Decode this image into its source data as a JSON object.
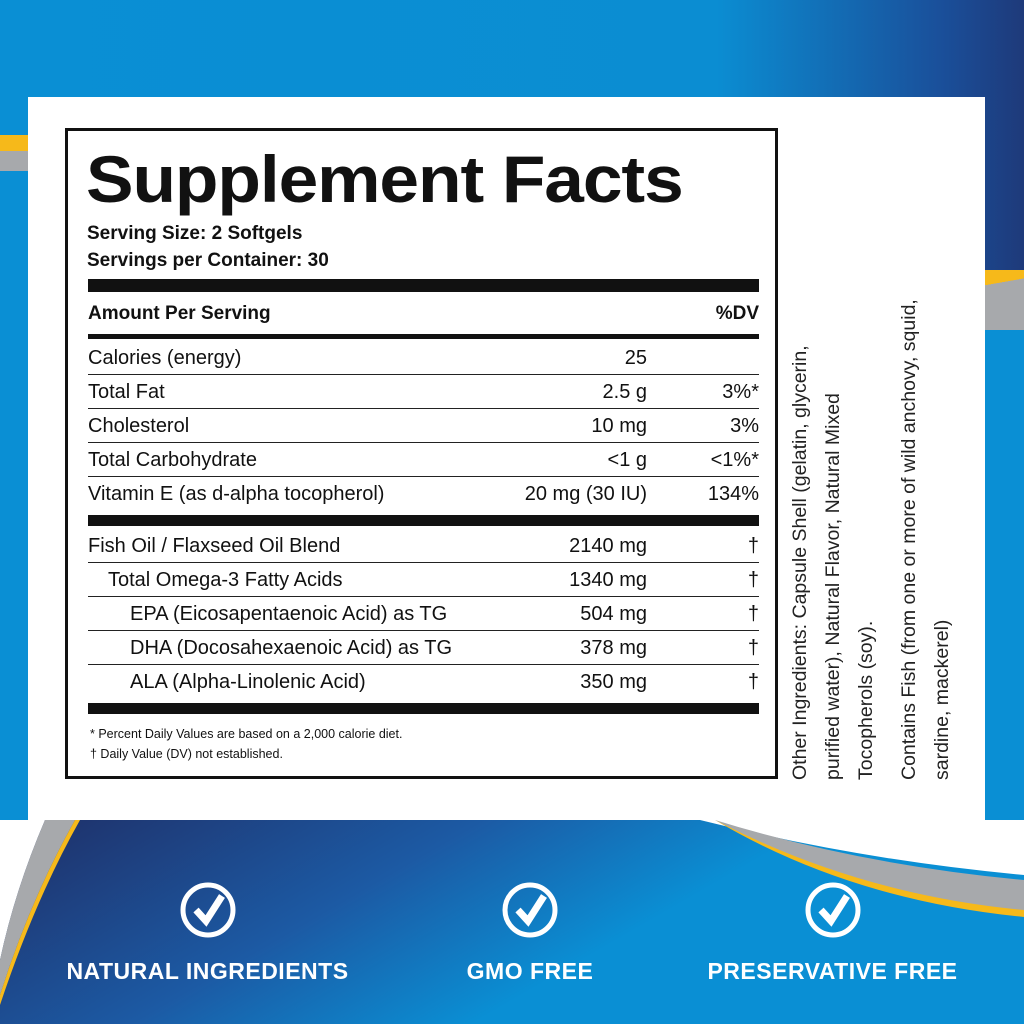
{
  "colors": {
    "brand_blue": "#0a8fd4",
    "navy": "#1f2e66",
    "accent_yellow": "#f6b91a",
    "gray": "#a7a9ac"
  },
  "label": {
    "title": "Supplement Facts",
    "serving_size": "Serving Size: 2 Softgels",
    "servings_per_container": "Servings per Container: 30",
    "amount_header": "Amount Per Serving",
    "dv_header": "%DV",
    "nutrients": [
      {
        "name": "Calories (energy)",
        "amount": "25",
        "dv": ""
      },
      {
        "name": "Total Fat",
        "amount": "2.5 g",
        "dv": "3%*"
      },
      {
        "name": "Cholesterol",
        "amount": "10 mg",
        "dv": "3%"
      },
      {
        "name": "Total Carbohydrate",
        "amount": "<1 g",
        "dv": "<1%*"
      },
      {
        "name": "Vitamin E (as d-alpha tocopherol)",
        "amount": "20 mg (30 IU)",
        "dv": "134%"
      }
    ],
    "blend": [
      {
        "name": "Fish Oil / Flaxseed Oil Blend",
        "amount": "2140 mg",
        "dv": "†"
      },
      {
        "name": "Total Omega-3 Fatty Acids",
        "amount": "1340 mg",
        "dv": "†"
      },
      {
        "name": "EPA (Eicosapentaenoic Acid) as TG",
        "amount": "504 mg",
        "dv": "†"
      },
      {
        "name": "DHA (Docosahexaenoic Acid) as TG",
        "amount": "378 mg",
        "dv": "†"
      },
      {
        "name": "ALA (Alpha-Linolenic Acid)",
        "amount": "350 mg",
        "dv": "†"
      }
    ],
    "footnote_1": "* Percent Daily Values are based on a 2,000 calorie diet.",
    "footnote_2": "† Daily Value (DV) not established."
  },
  "side_text": {
    "other_ingredients": [
      "Other Ingredients: Capsule Shell (gelatin, glycerin,",
      "purified water), Natural Flavor, Natural Mixed",
      "Tocopherols (soy)."
    ],
    "allergen": [
      "Contains Fish (from one or more of wild anchovy, squid,",
      "sardine, mackerel)"
    ]
  },
  "badges": [
    {
      "label": "NATURAL INGREDIENTS",
      "icon": "check-circle-icon"
    },
    {
      "label": "GMO FREE",
      "icon": "check-circle-icon"
    },
    {
      "label": "PRESERVATIVE FREE",
      "icon": "check-circle-icon"
    }
  ]
}
